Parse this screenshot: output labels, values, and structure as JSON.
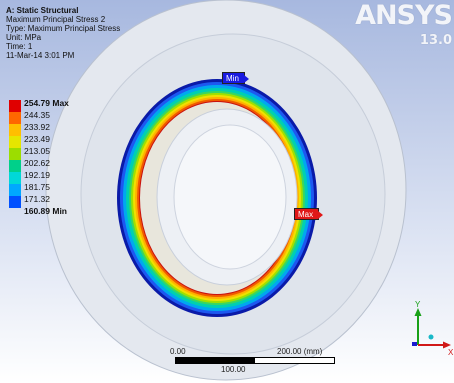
{
  "info": {
    "title": "A: Static Structural",
    "result": "Maximum Principal Stress 2",
    "type": "Type: Maximum Principal Stress",
    "unit": "Unit: MPa",
    "time": "Time: 1",
    "date": "11-Mar-14 3:01 PM"
  },
  "logo": {
    "text": "ANSYS",
    "version": "13.0"
  },
  "legend": {
    "max_label": "254.79 Max",
    "min_label": "160.89 Min",
    "levels": [
      "244.35",
      "233.92",
      "223.49",
      "213.05",
      "202.62",
      "192.19",
      "181.75",
      "171.32"
    ],
    "colors": [
      "#e00000",
      "#ff6600",
      "#ffbf00",
      "#e6e600",
      "#9cdd00",
      "#00d08a",
      "#00d8d8",
      "#00a8ff",
      "#0050ff"
    ]
  },
  "probes": {
    "min": "Min",
    "max": "Max"
  },
  "scale": {
    "zero": "0.00",
    "mid": "100.00",
    "end": "200.00 (mm)"
  },
  "triad": {
    "y": "Y",
    "x": "X"
  }
}
